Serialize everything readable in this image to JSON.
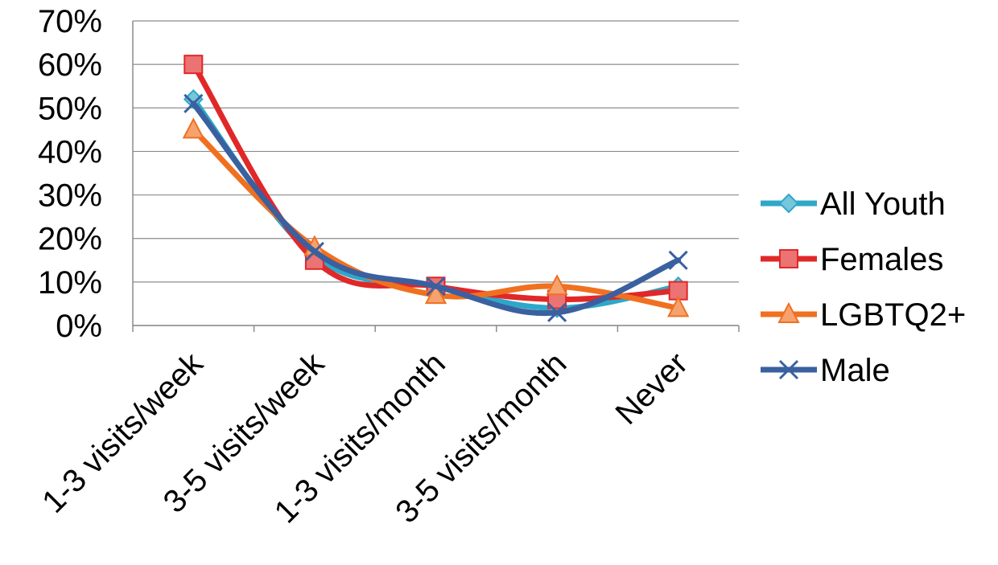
{
  "chart_data": {
    "type": "line",
    "categories": [
      "1-3 visits/week",
      "3-5 visits/week",
      "1-3 visits/month",
      "3-5 visits/month",
      "Never"
    ],
    "y_ticks": [
      "0%",
      "10%",
      "20%",
      "30%",
      "40%",
      "50%",
      "60%",
      "70%"
    ],
    "ylim": [
      0,
      70
    ],
    "grid": true,
    "legend_position": "right",
    "series": [
      {
        "name": "All Youth",
        "values": [
          52,
          16,
          9,
          4,
          9
        ],
        "color": "#2EA8C8",
        "marker": "diamond"
      },
      {
        "name": "Females",
        "values": [
          60,
          15,
          9,
          6,
          8
        ],
        "color": "#E02828",
        "marker": "square"
      },
      {
        "name": "LGBTQ2+",
        "values": [
          45,
          18,
          7,
          9,
          4
        ],
        "color": "#F07020",
        "marker": "triangle"
      },
      {
        "name": "Male",
        "values": [
          51,
          17,
          9,
          3,
          15
        ],
        "color": "#3A60A0",
        "marker": "x"
      }
    ]
  }
}
